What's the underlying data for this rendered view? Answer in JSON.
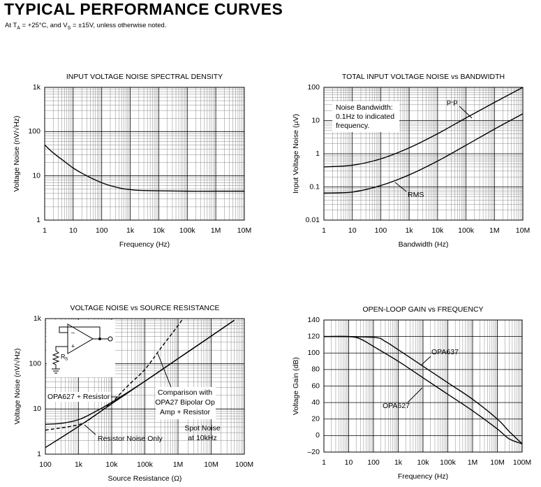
{
  "header": {
    "title": "TYPICAL PERFORMANCE CURVES",
    "subtitle": [
      "At T",
      "A",
      " = +25°C, and V",
      "S",
      " = ±15V, unless otherwise noted."
    ]
  },
  "chart_data": [
    {
      "type": "line",
      "title": "INPUT VOLTAGE NOISE SPECTRAL DENSITY",
      "xlabel": "Frequency (Hz)",
      "ylabel": "Voltage Noise (nV/√Hz)",
      "xlog": true,
      "ylog": true,
      "grid": true,
      "minor_grid": true,
      "xlim": [
        1,
        10000000
      ],
      "ylim": [
        1,
        1000
      ],
      "xticks": [
        1,
        10,
        100,
        {
          "value": 1000,
          "label": "1k"
        },
        {
          "value": 10000,
          "label": "10k"
        },
        {
          "value": 100000,
          "label": "100k"
        },
        {
          "value": 1000000,
          "label": "1M"
        },
        {
          "value": 10000000,
          "label": "10M"
        }
      ],
      "yticks": [
        1,
        10,
        100,
        {
          "value": 1000,
          "label": "1k"
        }
      ],
      "series": [
        {
          "color": "#000000",
          "x": [
            1,
            2,
            5,
            10,
            20,
            50,
            100,
            200,
            500,
            1000,
            2000,
            10000,
            100000,
            1000000,
            10000000
          ],
          "values": [
            50,
            33,
            21,
            15,
            11.5,
            8.5,
            7,
            6,
            5.2,
            4.9,
            4.7,
            4.6,
            4.5,
            4.5,
            4.5
          ]
        }
      ]
    },
    {
      "type": "line",
      "title": "TOTAL INPUT VOLTAGE NOISE vs BANDWIDTH",
      "xlabel": "Bandwidth (Hz)",
      "ylabel": "Input Voltage Noise (µV)",
      "xlog": true,
      "ylog": true,
      "grid": true,
      "minor_grid": true,
      "xlim": [
        1,
        10000000
      ],
      "ylim": [
        0.01,
        100
      ],
      "xticks": [
        1,
        10,
        100,
        {
          "value": 1000,
          "label": "1k"
        },
        {
          "value": 10000,
          "label": "10k"
        },
        {
          "value": 100000,
          "label": "100k"
        },
        {
          "value": 1000000,
          "label": "1M"
        },
        {
          "value": 10000000,
          "label": "10M"
        }
      ],
      "yticks": [
        0.01,
        0.1,
        1,
        10,
        100
      ],
      "annotations": [
        [
          "Noise Bandwidth:",
          "0.1Hz to indicated",
          "frequency."
        ]
      ],
      "series": [
        {
          "name": "p-p",
          "color": "#000000",
          "x": [
            1,
            10,
            100,
            1000,
            10000,
            100000,
            1000000,
            10000000
          ],
          "values": [
            0.4,
            0.45,
            0.7,
            1.5,
            4,
            12,
            35,
            100
          ]
        },
        {
          "name": "RMS",
          "color": "#000000",
          "x": [
            1,
            10,
            100,
            1000,
            10000,
            100000,
            1000000,
            10000000
          ],
          "values": [
            0.065,
            0.07,
            0.11,
            0.23,
            0.6,
            1.8,
            5.5,
            16
          ]
        }
      ]
    },
    {
      "type": "line",
      "title": "VOLTAGE NOISE vs SOURCE RESISTANCE",
      "xlabel": "Source Resistance (Ω)",
      "ylabel": "Voltage Noise (nV/√Hz)",
      "xlog": true,
      "ylog": true,
      "grid": true,
      "minor_grid": true,
      "xlim": [
        100,
        100000000
      ],
      "ylim": [
        1,
        1000
      ],
      "xticks": [
        100,
        {
          "value": 1000,
          "label": "1k"
        },
        {
          "value": 10000,
          "label": "10k"
        },
        {
          "value": 100000,
          "label": "100k"
        },
        {
          "value": 1000000,
          "label": "1M"
        },
        {
          "value": 10000000,
          "label": "10M"
        },
        {
          "value": 100000000,
          "label": "100M"
        }
      ],
      "yticks": [
        1,
        10,
        100,
        {
          "value": 1000,
          "label": "1k"
        }
      ],
      "annotations": [
        [
          "Spot Noise",
          "at 10kHz"
        ]
      ],
      "inset": {
        "minus": "–",
        "plus": "+",
        "resistor": "R",
        "resistor_sub": "S"
      },
      "series": [
        {
          "name": "Resistor Noise Only",
          "color": "#000000",
          "x": [
            100,
            1000,
            10000,
            100000,
            1000000,
            10000000,
            50000000
          ],
          "values": [
            1.4,
            4.1,
            13,
            41,
            130,
            410,
            920
          ]
        },
        {
          "name": "OPA627 + Resistor",
          "color": "#000000",
          "x": [
            100,
            300,
            1000,
            3000,
            10000,
            100000,
            1000000,
            10000000,
            50000000
          ],
          "values": [
            4.6,
            4.8,
            5.8,
            8.5,
            14,
            41,
            130,
            410,
            920
          ]
        },
        {
          "label_lines": [
            "Comparison with",
            "OPA27 Bipolar Op",
            "Amp + Resistor"
          ],
          "color": "#000000",
          "style": "dashed",
          "x": [
            100,
            1000,
            3000,
            10000,
            30000,
            100000,
            300000,
            1000000,
            1400000
          ],
          "values": [
            3.4,
            4.5,
            7,
            14,
            32,
            75,
            220,
            700,
            1000
          ]
        }
      ]
    },
    {
      "type": "line",
      "title": "OPEN-LOOP GAIN vs FREQUENCY",
      "xlabel": "Frequency (Hz)",
      "ylabel": "Voltage Gain (dB)",
      "xlog": true,
      "ylog": false,
      "grid": true,
      "minor_grid": true,
      "xlim": [
        1,
        100000000
      ],
      "ylim": [
        -20,
        140
      ],
      "xticks": [
        1,
        10,
        100,
        {
          "value": 1000,
          "label": "1k"
        },
        {
          "value": 10000,
          "label": "10k"
        },
        {
          "value": 100000,
          "label": "100k"
        },
        {
          "value": 1000000,
          "label": "1M"
        },
        {
          "value": 10000000,
          "label": "10M"
        },
        {
          "value": 100000000,
          "label": "100M"
        }
      ],
      "yticks": [
        {
          "value": -20,
          "label": "–20"
        },
        0,
        20,
        40,
        60,
        80,
        100,
        120,
        140
      ],
      "series": [
        {
          "name": "OPA637",
          "color": "#000000",
          "x": [
            1,
            100,
            300,
            1000,
            10000,
            100000,
            1000000,
            10000000,
            30000000,
            100000000
          ],
          "values": [
            120,
            119,
            114,
            104,
            84,
            64,
            44,
            20,
            5,
            -10
          ]
        },
        {
          "name": "OPA627",
          "color": "#000000",
          "x": [
            1,
            10,
            30,
            100,
            1000,
            10000,
            100000,
            1000000,
            10000000,
            30000000,
            100000000
          ],
          "values": [
            120,
            120,
            117,
            108,
            90,
            70,
            50,
            30,
            8,
            -4,
            -10
          ]
        }
      ]
    }
  ]
}
